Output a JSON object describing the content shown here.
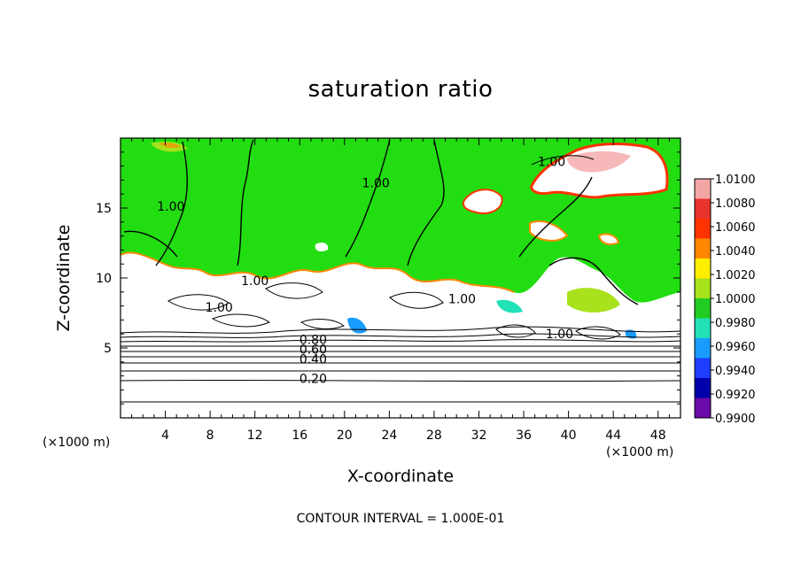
{
  "chart_data": {
    "type": "heatmap",
    "title": "saturation ratio",
    "xlabel": "X-coordinate",
    "ylabel": "Z-coordinate",
    "x_unit": "(×1000 m)",
    "xlim": [
      0,
      50
    ],
    "ylim": [
      0,
      20
    ],
    "x_ticks": [
      4,
      8,
      12,
      16,
      20,
      24,
      28,
      32,
      36,
      40,
      44,
      48
    ],
    "y_ticks": [
      5,
      10,
      15
    ],
    "contour_interval_label": "CONTOUR INTERVAL = 1.000E-01",
    "contour_labels": [
      {
        "text": "1.00",
        "x": 4.5,
        "y": 14.8
      },
      {
        "text": "1.00",
        "x": 22.8,
        "y": 16.5
      },
      {
        "text": "1.00",
        "x": 38.5,
        "y": 18.0
      },
      {
        "text": "1.00",
        "x": 12.0,
        "y": 9.5
      },
      {
        "text": "1.00",
        "x": 8.8,
        "y": 7.6
      },
      {
        "text": "1.00",
        "x": 30.5,
        "y": 8.2
      },
      {
        "text": "1.00",
        "x": 39.2,
        "y": 5.7
      },
      {
        "text": "0.80",
        "x": 17.2,
        "y": 5.3
      },
      {
        "text": "0.60",
        "x": 17.2,
        "y": 4.6
      },
      {
        "text": "0.40",
        "x": 17.2,
        "y": 3.9
      },
      {
        "text": "0.20",
        "x": 17.2,
        "y": 2.5
      }
    ],
    "colorbar": {
      "labels": [
        "1.0100",
        "1.0080",
        "1.0060",
        "1.0040",
        "1.0020",
        "1.0000",
        "0.9980",
        "0.9960",
        "0.9940",
        "0.9920",
        "0.9900"
      ],
      "colors": [
        "#f4a6a6",
        "#e8322c",
        "#ff3300",
        "#ff8800",
        "#ffee00",
        "#a8e21c",
        "#22cc22",
        "#22e0b8",
        "#1a9cff",
        "#1f3dff",
        "#0000aa",
        "#6a0aa8"
      ]
    },
    "field_colors": {
      "saturated": "#22dd11",
      "subsaturated": "#ffffff"
    }
  }
}
